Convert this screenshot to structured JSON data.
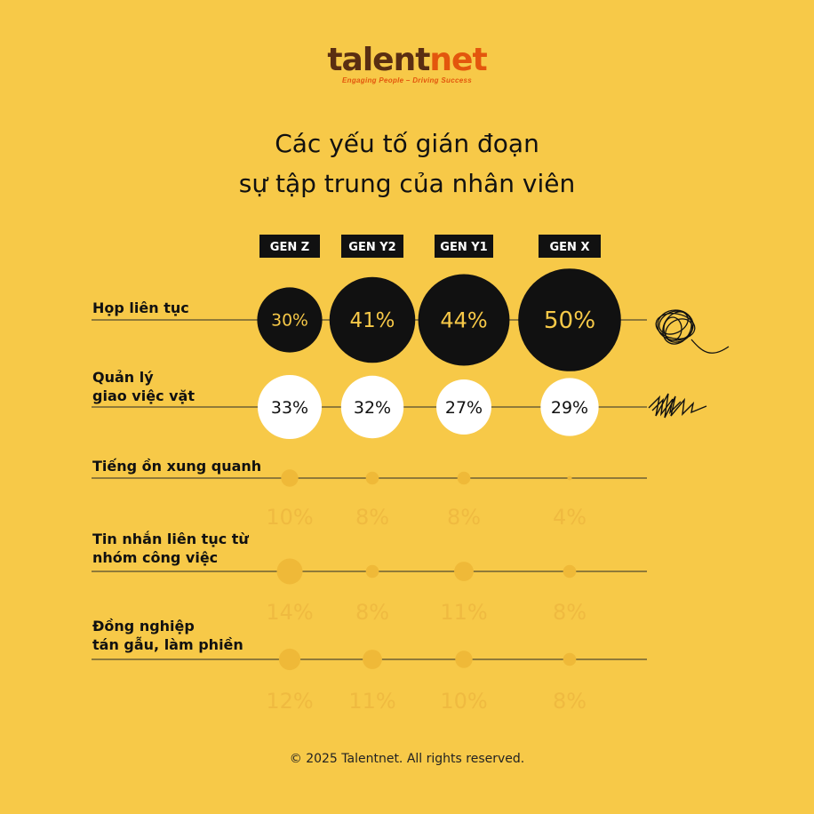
{
  "brand": {
    "name_main": "talent",
    "name_accent": "net",
    "tagline": "Engaging People – Driving Success"
  },
  "title_lines": [
    "Các yếu tố gián đoạn",
    "sự tập trung của nhân viên"
  ],
  "footer": "© 2025 Talentnet. All rights reserved.",
  "colors": {
    "background": "#f7c948",
    "dark_circle": "#111111",
    "dark_circle_text": "#f7c948",
    "light_circle": "#ffffff",
    "light_circle_text": "#111111",
    "faint_dot": "#efb938",
    "faint_text": "#efba40"
  },
  "icons": [
    "scribble-ball-icon",
    "zigzag-scribble-icon"
  ],
  "chart_data": {
    "type": "bubble",
    "categories": [
      "GEN Z",
      "GEN Y2",
      "GEN Y1",
      "GEN X"
    ],
    "unit": "%",
    "rows": [
      {
        "label_lines": [
          "Họp liên tục"
        ],
        "values": [
          30,
          41,
          44,
          50
        ],
        "labels": [
          "30%",
          "41%",
          "44%",
          "50%"
        ],
        "style": "dark"
      },
      {
        "label_lines": [
          "Quản lý",
          "giao việc vặt"
        ],
        "values": [
          33,
          32,
          27,
          29
        ],
        "labels": [
          "33%",
          "32%",
          "27%",
          "29%"
        ],
        "style": "light"
      },
      {
        "label_lines": [
          "Tiếng ồn xung quanh"
        ],
        "values": [
          10,
          8,
          8,
          4
        ],
        "labels": [
          "10%",
          "8%",
          "8%",
          "4%"
        ],
        "style": "faint"
      },
      {
        "label_lines": [
          "Tin nhắn liên tục từ",
          "nhóm công việc"
        ],
        "values": [
          14,
          8,
          11,
          8
        ],
        "labels": [
          "14%",
          "8%",
          "11%",
          "8%"
        ],
        "style": "faint"
      },
      {
        "label_lines": [
          "Đồng nghiệp",
          "tán gẫu, làm phiền"
        ],
        "values": [
          12,
          11,
          10,
          8
        ],
        "labels": [
          "12%",
          "11%",
          "10%",
          "8%"
        ],
        "style": "faint"
      }
    ]
  }
}
